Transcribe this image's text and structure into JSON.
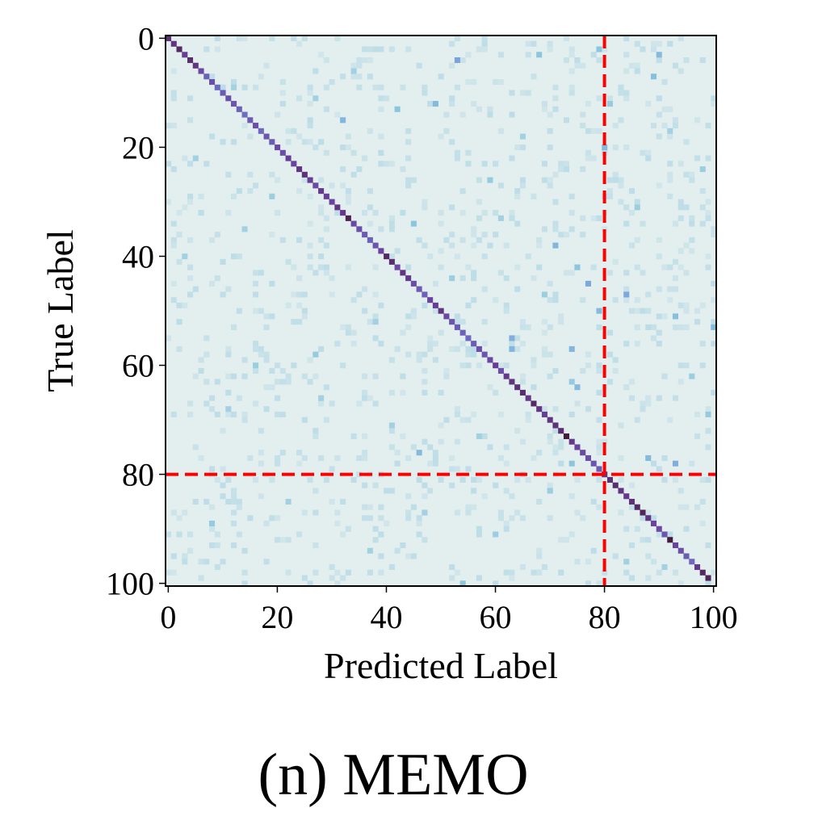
{
  "chart_data": {
    "type": "heatmap",
    "title": "",
    "xlabel": "Predicted Label",
    "ylabel": "True Label",
    "n_classes": 100,
    "xlim": [
      0,
      100
    ],
    "ylim": [
      0,
      100
    ],
    "x_ticks": [
      0,
      20,
      40,
      60,
      80,
      100
    ],
    "y_ticks": [
      0,
      20,
      40,
      60,
      80,
      100
    ],
    "x_tick_labels": [
      "0",
      "20",
      "40",
      "60",
      "80",
      "100"
    ],
    "y_tick_labels": [
      "0",
      "20",
      "40",
      "60",
      "80",
      "100"
    ],
    "y_axis_inverted": true,
    "colormap": [
      "#e3eeee",
      "#8bc6dd",
      "#6f8cdf",
      "#6a3f9c",
      "#3b0f1c"
    ],
    "background_color": "#e3eeee",
    "diagonal_intensity": [
      0.82,
      0.8,
      0.86,
      0.76,
      0.84,
      0.8,
      0.72,
      0.64,
      0.7,
      0.62,
      0.66,
      0.7,
      0.68,
      0.64,
      0.6,
      0.66,
      0.7,
      0.62,
      0.68,
      0.66,
      0.72,
      0.7,
      0.76,
      0.74,
      0.8,
      0.82,
      0.76,
      0.72,
      0.78,
      0.76,
      0.74,
      0.8,
      0.78,
      0.9,
      0.72,
      0.7,
      0.66,
      0.64,
      0.68,
      0.74,
      0.86,
      0.84,
      0.72,
      0.8,
      0.78,
      0.7,
      0.66,
      0.64,
      0.74,
      0.76,
      0.8,
      0.72,
      0.68,
      0.66,
      0.64,
      0.62,
      0.66,
      0.7,
      0.68,
      0.72,
      0.76,
      0.7,
      0.78,
      0.8,
      0.82,
      0.84,
      0.78,
      0.86,
      0.8,
      0.76,
      0.8,
      0.82,
      0.84,
      0.94,
      0.78,
      0.74,
      0.72,
      0.7,
      0.68,
      0.66,
      0.8,
      0.82,
      0.84,
      0.8,
      0.78,
      0.82,
      0.86,
      0.88,
      0.8,
      0.74,
      0.72,
      0.68,
      0.94,
      0.74,
      0.7,
      0.66,
      0.62,
      0.78,
      0.86,
      0.88
    ],
    "off_diagonal": [
      {
        "true": 4,
        "pred": 53,
        "v": 0.4
      },
      {
        "true": 3,
        "pred": 68,
        "v": 0.25
      },
      {
        "true": 3,
        "pred": 90,
        "v": 0.3
      },
      {
        "true": 2,
        "pred": 79,
        "v": 0.25
      },
      {
        "true": 7,
        "pred": 89,
        "v": 0.28
      },
      {
        "true": 12,
        "pred": 49,
        "v": 0.3
      },
      {
        "true": 15,
        "pred": 32,
        "v": 0.32
      },
      {
        "true": 12,
        "pred": 81,
        "v": 0.22
      },
      {
        "true": 13,
        "pred": 42,
        "v": 0.25
      },
      {
        "true": 20,
        "pred": 80,
        "v": 0.3
      },
      {
        "true": 26,
        "pred": 59,
        "v": 0.22
      },
      {
        "true": 29,
        "pred": 19,
        "v": 0.2
      },
      {
        "true": 34,
        "pred": 45,
        "v": 0.25
      },
      {
        "true": 38,
        "pred": 71,
        "v": 0.32
      },
      {
        "true": 42,
        "pred": 75,
        "v": 0.25
      },
      {
        "true": 45,
        "pred": 77,
        "v": 0.38
      },
      {
        "true": 47,
        "pred": 84,
        "v": 0.38
      },
      {
        "true": 50,
        "pred": 79,
        "v": 0.3
      },
      {
        "true": 51,
        "pred": 93,
        "v": 0.28
      },
      {
        "true": 53,
        "pred": 100,
        "v": 0.3
      },
      {
        "true": 55,
        "pred": 63,
        "v": 0.35
      },
      {
        "true": 57,
        "pred": 63,
        "v": 0.32
      },
      {
        "true": 57,
        "pred": 74,
        "v": 0.32
      },
      {
        "true": 58,
        "pred": 27,
        "v": 0.22
      },
      {
        "true": 63,
        "pred": 74,
        "v": 0.22
      },
      {
        "true": 64,
        "pred": 75,
        "v": 0.3
      },
      {
        "true": 69,
        "pred": 99,
        "v": 0.22
      },
      {
        "true": 76,
        "pred": 46,
        "v": 0.3
      },
      {
        "true": 78,
        "pred": 74,
        "v": 0.25
      },
      {
        "true": 78,
        "pred": 93,
        "v": 0.35
      },
      {
        "true": 77,
        "pred": 88,
        "v": 0.3
      },
      {
        "true": 89,
        "pred": 8,
        "v": 0.22
      },
      {
        "true": 97,
        "pred": 91,
        "v": 0.18
      },
      {
        "true": 100,
        "pred": 54,
        "v": 0.25
      },
      {
        "true": 22,
        "pred": 5,
        "v": 0.18
      },
      {
        "true": 35,
        "pred": 14,
        "v": 0.18
      },
      {
        "true": 44,
        "pred": 52,
        "v": 0.2
      },
      {
        "true": 47,
        "pred": 69,
        "v": 0.2
      },
      {
        "true": 60,
        "pred": 16,
        "v": 0.2
      },
      {
        "true": 66,
        "pred": 28,
        "v": 0.18
      },
      {
        "true": 71,
        "pred": 41,
        "v": 0.18
      },
      {
        "true": 85,
        "pred": 22,
        "v": 0.18
      },
      {
        "true": 91,
        "pred": 60,
        "v": 0.2
      },
      {
        "true": 94,
        "pred": 37,
        "v": 0.18
      },
      {
        "true": 9,
        "pred": 12,
        "v": 0.18
      },
      {
        "true": 18,
        "pred": 65,
        "v": 0.18
      },
      {
        "true": 31,
        "pred": 86,
        "v": 0.2
      },
      {
        "true": 40,
        "pred": 3,
        "v": 0.18
      },
      {
        "true": 52,
        "pred": 38,
        "v": 0.18
      },
      {
        "true": 62,
        "pred": 96,
        "v": 0.2
      },
      {
        "true": 73,
        "pred": 57,
        "v": 0.18
      },
      {
        "true": 83,
        "pred": 70,
        "v": 0.2
      },
      {
        "true": 96,
        "pred": 84,
        "v": 0.18
      },
      {
        "true": 24,
        "pred": 98,
        "v": 0.2
      },
      {
        "true": 33,
        "pred": 61,
        "v": 0.18
      },
      {
        "true": 68,
        "pred": 11,
        "v": 0.18
      },
      {
        "true": 87,
        "pred": 47,
        "v": 0.18
      },
      {
        "true": 11,
        "pred": 27,
        "v": 0.18
      },
      {
        "true": 6,
        "pred": 34,
        "v": 0.18
      },
      {
        "true": 17,
        "pred": 92,
        "v": 0.18
      }
    ],
    "reference_lines": [
      {
        "axis": "x",
        "value": 80,
        "color": "#ff0000",
        "style": "dashed"
      },
      {
        "axis": "y",
        "value": 80,
        "color": "#ff0000",
        "style": "dashed"
      }
    ]
  },
  "caption": "(n) MEMO"
}
